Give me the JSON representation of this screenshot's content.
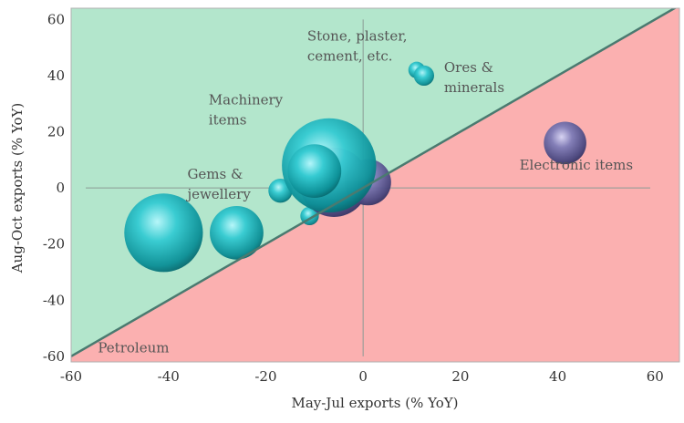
{
  "chart_data": {
    "type": "scatter",
    "xlabel": "May-Jul exports (% YoY)",
    "ylabel": "Aug-Oct exports (% YoY)",
    "xlim": [
      -60,
      65
    ],
    "ylim": [
      -62,
      64
    ],
    "xticks": [
      -60,
      -40,
      -20,
      0,
      20,
      40,
      60
    ],
    "yticks": [
      -60,
      -40,
      -20,
      0,
      20,
      40,
      60
    ],
    "xtick_labels": [
      "-60",
      "-40",
      "-20",
      "0",
      "20",
      "40",
      "60"
    ],
    "ytick_labels": [
      "-60",
      "-40",
      "-20",
      "0",
      "20",
      "40",
      "60"
    ],
    "grid": false,
    "regions": [
      {
        "side": "above_diagonal",
        "color": "#b3e6cc"
      },
      {
        "side": "below_diagonal",
        "color": "#fbb0b0"
      }
    ],
    "diagonal_color": "#4a7a70",
    "bubble_colors": {
      "teal": "#17b5bd",
      "purple": "#6a68a0"
    },
    "points": [
      {
        "label_lines": [
          "Petroleum"
        ],
        "x": -41,
        "y": -16,
        "size": 8.5,
        "color": "teal"
      },
      {
        "label_lines": [],
        "x": -26,
        "y": -16,
        "size": 5.8,
        "color": "teal"
      },
      {
        "label_lines": [
          "Gems &",
          "jewellery"
        ],
        "x": -17,
        "y": -1,
        "size": 2.6,
        "color": "teal"
      },
      {
        "label_lines": [],
        "x": -11,
        "y": -10,
        "size": 2.0,
        "color": "teal"
      },
      {
        "label_lines": [],
        "x": -6,
        "y": 2,
        "size": 7.5,
        "color": "purple"
      },
      {
        "label_lines": [],
        "x": 1,
        "y": 2,
        "size": 5.0,
        "color": "purple"
      },
      {
        "label_lines": [
          "Machinery",
          "items"
        ],
        "x": -7,
        "y": 8,
        "size": 10.2,
        "color": "teal"
      },
      {
        "label_lines": [],
        "x": -10,
        "y": 6,
        "size": 5.8,
        "color": "teal"
      },
      {
        "label_lines": [
          "Stone, plaster,",
          "cement, etc."
        ],
        "x": 11,
        "y": 42,
        "size": 1.8,
        "color": "teal"
      },
      {
        "label_lines": [
          "Ores &",
          "minerals"
        ],
        "x": 12.5,
        "y": 40,
        "size": 2.2,
        "color": "teal"
      },
      {
        "label_lines": [
          "Electronic items"
        ],
        "x": 41.5,
        "y": 16,
        "size": 4.6,
        "color": "purple"
      }
    ]
  }
}
